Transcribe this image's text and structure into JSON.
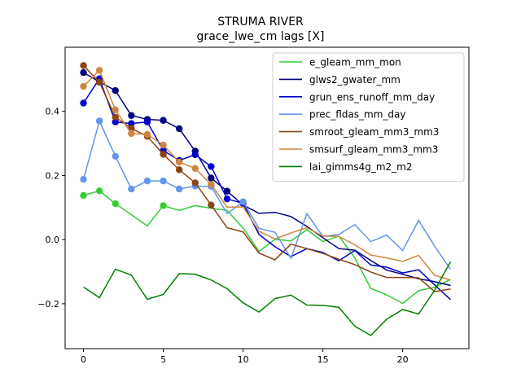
{
  "chart_data": {
    "type": "line",
    "title": "STRUMA RIVER",
    "subtitle": "grace_lwe_cm lags [X]",
    "xlabel": "",
    "ylabel": "",
    "xlim": [
      -1.15,
      24.15
    ],
    "ylim": [
      -0.34,
      0.6
    ],
    "xticks": [
      0,
      5,
      10,
      15,
      20
    ],
    "yticks": [
      -0.2,
      0.0,
      0.2,
      0.4
    ],
    "ytick_labels": [
      "−0.2",
      "0.0",
      "0.2",
      "0.4"
    ],
    "legend_position": "top-right",
    "grid": false,
    "x": [
      0,
      1,
      2,
      3,
      4,
      5,
      6,
      7,
      8,
      9,
      10,
      11,
      12,
      13,
      14,
      15,
      16,
      17,
      18,
      19,
      20,
      21,
      22,
      23
    ],
    "series": [
      {
        "name": "e_gleam_mm_mon",
        "color": "#32cd32",
        "values": [
          0.138,
          0.152,
          0.112,
          0.078,
          0.043,
          0.106,
          0.091,
          0.106,
          0.098,
          0.091,
          0.036,
          -0.037,
          0.001,
          -0.004,
          0.031,
          -0.006,
          0.011,
          -0.057,
          -0.152,
          -0.172,
          -0.199,
          -0.159,
          -0.149,
          -0.124
        ],
        "markers_until": 5,
        "marker_indices": [
          0,
          1,
          2,
          5
        ]
      },
      {
        "name": "glws2_gwater_mm",
        "color": "#000080",
        "values": [
          0.521,
          0.492,
          0.465,
          0.387,
          0.375,
          0.372,
          0.346,
          0.276,
          0.192,
          0.151,
          0.108,
          0.082,
          0.085,
          0.072,
          0.041,
          0.006,
          -0.028,
          -0.033,
          -0.065,
          -0.095,
          -0.108,
          -0.122,
          -0.131,
          -0.143
        ],
        "marker_indices": [
          0,
          1,
          2,
          3,
          4,
          5,
          6,
          7,
          8,
          9
        ]
      },
      {
        "name": "grun_ens_runoff_mm_day",
        "color": "#0000cd",
        "values": [
          0.426,
          0.502,
          0.367,
          0.362,
          0.367,
          0.278,
          0.247,
          0.265,
          0.228,
          0.127,
          0.113,
          0.016,
          -0.022,
          -0.053,
          -0.028,
          -0.04,
          -0.066,
          -0.034,
          -0.079,
          -0.086,
          -0.104,
          -0.094,
          -0.141,
          -0.187
        ],
        "marker_indices": [
          0,
          1,
          2,
          3,
          4,
          5,
          6,
          7,
          8,
          9,
          10
        ]
      },
      {
        "name": "prec_fldas_mm_day",
        "color": "#6495ed",
        "values": [
          0.188,
          0.37,
          0.26,
          0.158,
          0.183,
          0.183,
          0.158,
          0.167,
          0.166,
          0.081,
          0.118,
          0.035,
          0.023,
          -0.058,
          0.081,
          0.01,
          0.016,
          0.047,
          -0.006,
          0.014,
          -0.034,
          0.06,
          -0.02,
          -0.093
        ],
        "marker_indices": [
          0,
          1,
          2,
          3,
          4,
          5,
          6,
          7,
          8,
          10
        ]
      },
      {
        "name": "smroot_gleam_mm3_mm3",
        "color": "#8b4513",
        "values": [
          0.543,
          0.491,
          0.382,
          0.347,
          0.322,
          0.266,
          0.218,
          0.177,
          0.108,
          0.037,
          0.024,
          -0.042,
          -0.063,
          -0.014,
          -0.028,
          -0.043,
          -0.061,
          -0.078,
          -0.101,
          -0.118,
          -0.118,
          -0.119,
          -0.162,
          -0.154
        ],
        "marker_indices": [
          0,
          1,
          2,
          3,
          4,
          5,
          6,
          7,
          8
        ]
      },
      {
        "name": "smsurf_gleam_mm3_mm3",
        "color": "#cd853f",
        "values": [
          0.478,
          0.528,
          0.405,
          0.331,
          0.328,
          0.295,
          0.242,
          0.222,
          0.172,
          0.101,
          0.102,
          0.026,
          0.002,
          0.021,
          0.037,
          0.011,
          0.01,
          -0.016,
          -0.048,
          -0.057,
          -0.068,
          -0.049,
          -0.111,
          -0.126
        ],
        "marker_indices": [
          0,
          1,
          2,
          3,
          4,
          5,
          6,
          7,
          8
        ]
      },
      {
        "name": "lai_gimms4g_m2_m2",
        "color": "#008000",
        "values": [
          -0.148,
          -0.181,
          -0.092,
          -0.111,
          -0.186,
          -0.171,
          -0.106,
          -0.108,
          -0.126,
          -0.153,
          -0.197,
          -0.226,
          -0.184,
          -0.173,
          -0.204,
          -0.205,
          -0.211,
          -0.27,
          -0.299,
          -0.248,
          -0.218,
          -0.232,
          -0.158,
          -0.069
        ],
        "marker_indices": []
      }
    ]
  }
}
